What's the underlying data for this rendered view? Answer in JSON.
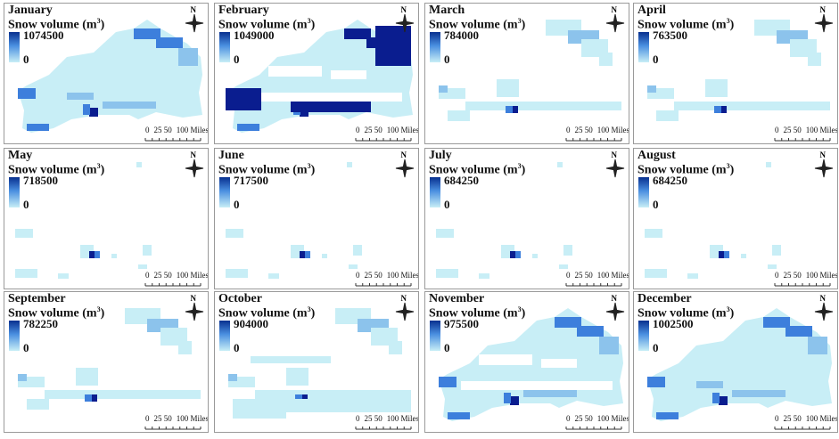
{
  "unit_label": "Snow volume (m",
  "unit_sup": "3",
  "unit_close": ")",
  "legend_min": "0",
  "north_label": "N",
  "scale_labels": [
    "0",
    "25 50",
    "100 Miles"
  ],
  "colors": {
    "low": "#c8eef6",
    "mid": "#8cc3ec",
    "high": "#3d7fdc",
    "max": "#0a1d8f"
  },
  "panels": [
    {
      "month": "January",
      "max": "1074500",
      "coverage": "full"
    },
    {
      "month": "February",
      "max": "1049000",
      "coverage": "full-gaps"
    },
    {
      "month": "March",
      "max": "784000",
      "coverage": "partial"
    },
    {
      "month": "April",
      "max": "763500",
      "coverage": "partial"
    },
    {
      "month": "May",
      "max": "718500",
      "coverage": "sparse"
    },
    {
      "month": "June",
      "max": "717500",
      "coverage": "sparse"
    },
    {
      "month": "July",
      "max": "684250",
      "coverage": "sparse"
    },
    {
      "month": "August",
      "max": "684250",
      "coverage": "sparse"
    },
    {
      "month": "September",
      "max": "782250",
      "coverage": "partial"
    },
    {
      "month": "October",
      "max": "904000",
      "coverage": "partial"
    },
    {
      "month": "November",
      "max": "975500",
      "coverage": "full-gaps"
    },
    {
      "month": "December",
      "max": "1002500",
      "coverage": "full"
    }
  ]
}
